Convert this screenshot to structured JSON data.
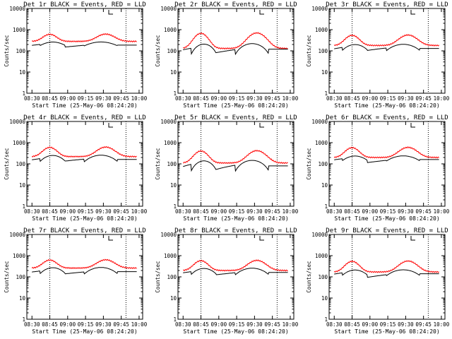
{
  "chart_data": {
    "type": "line",
    "layout": "3x3 grid",
    "y_scale": "log",
    "ylim": [
      1,
      10000
    ],
    "y_ticks": [
      1,
      10,
      100,
      1000,
      10000
    ],
    "y_tick_labels": [
      "1",
      "10",
      "100",
      "1000",
      "10000"
    ],
    "x_ticks_minutes": [
      0,
      15,
      30,
      45,
      60,
      75,
      90
    ],
    "x_tick_labels": [
      "08:30",
      "08:45",
      "09:00",
      "09:15",
      "09:30",
      "09:45",
      "10:00"
    ],
    "xlim_minutes": [
      -4.3,
      93
    ],
    "ylabel": "Counts/sec",
    "xlabel": "Start Time (25-May-06 08:24:20)",
    "vertical_markers_minutes": [
      15,
      79
    ],
    "series_colors": {
      "events": "#000000",
      "lld": "#ff0000"
    },
    "panels": [
      {
        "title": "Det 1r BLACK = Events, RED = LLD",
        "events_base": [
          150,
          240
        ],
        "events_gap": 120,
        "lld_base": [
          280,
          620
        ]
      },
      {
        "title": "Det 2r BLACK = Events, RED = LLD",
        "events_base": [
          60,
          210
        ],
        "events_gap": 30,
        "lld_base": [
          130,
          700
        ]
      },
      {
        "title": "Det 3r BLACK = Events, RED = LLD",
        "events_base": [
          90,
          190
        ],
        "events_gap": 70,
        "lld_base": [
          180,
          560
        ]
      },
      {
        "title": "Det 4r BLACK = Events, RED = LLD",
        "events_base": [
          110,
          240
        ],
        "events_gap": 90,
        "lld_base": [
          220,
          620
        ]
      },
      {
        "title": "Det 5r BLACK = Events, RED = LLD",
        "events_base": [
          40,
          140
        ],
        "events_gap": 20,
        "lld_base": [
          110,
          420
        ]
      },
      {
        "title": "Det 6r BLACK = Events, RED = LLD",
        "events_base": [
          120,
          220
        ],
        "events_gap": 80,
        "lld_base": [
          200,
          600
        ]
      },
      {
        "title": "Det 7r BLACK = Events, RED = LLD",
        "events_base": [
          120,
          260
        ],
        "events_gap": 90,
        "lld_base": [
          260,
          640
        ]
      },
      {
        "title": "Det 8r BLACK = Events, RED = LLD",
        "events_base": [
          110,
          240
        ],
        "events_gap": 80,
        "lld_base": [
          200,
          600
        ]
      },
      {
        "title": "Det 9r BLACK = Events, RED = LLD",
        "events_base": [
          100,
          200
        ],
        "events_gap": 60,
        "lld_base": [
          170,
          560
        ]
      }
    ]
  }
}
